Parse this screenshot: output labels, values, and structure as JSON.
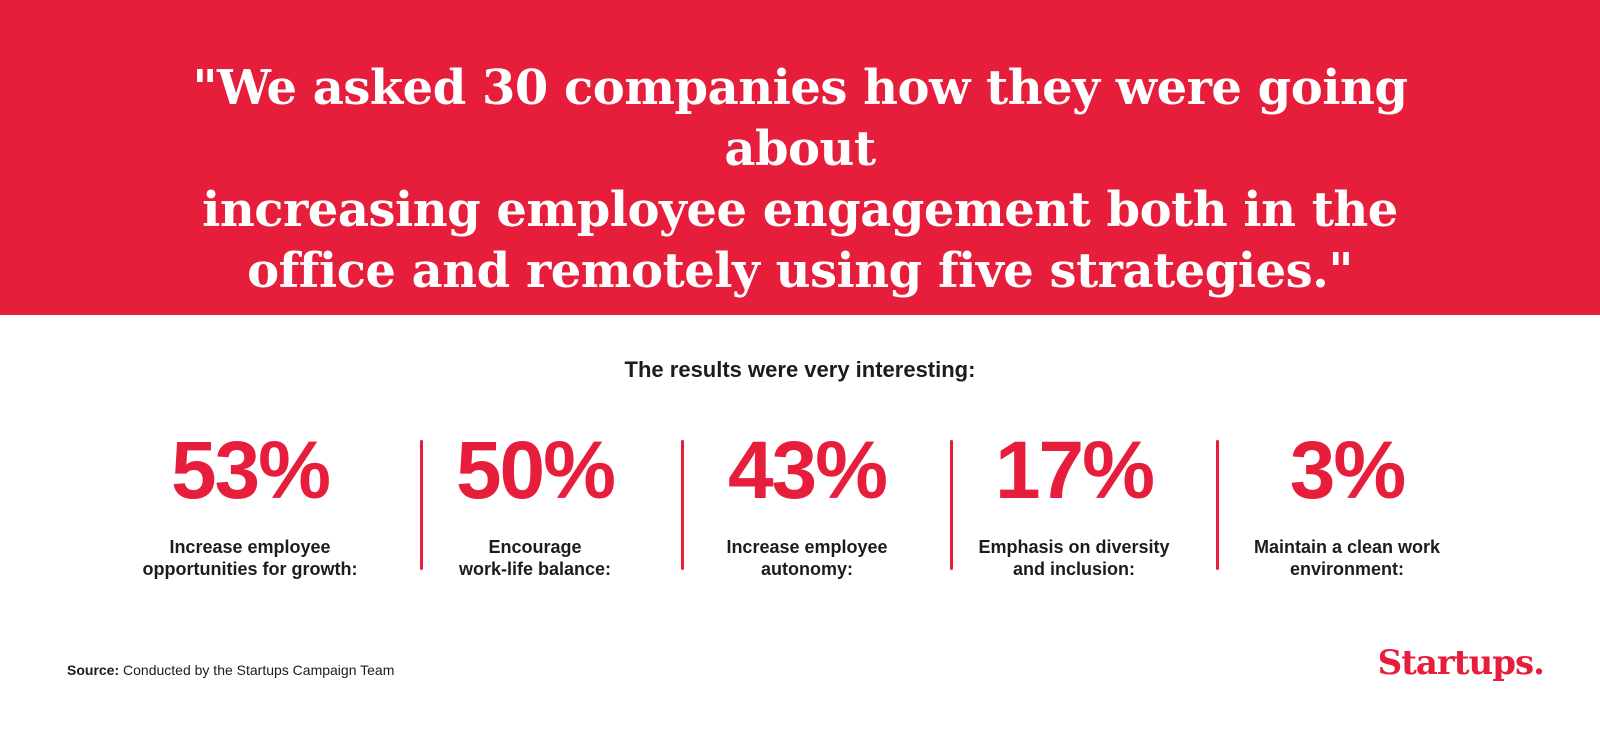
{
  "banner": {
    "quote_lines": [
      "\"We asked 30 companies how they were going about",
      "increasing employee engagement both in the",
      "office and remotely using five strategies.\""
    ],
    "background_color": "#e61e3c"
  },
  "results": {
    "heading": "The results were very interesting:",
    "accent_color": "#e61e3c",
    "items": [
      {
        "value": "53%",
        "label_lines": [
          "Increase employee",
          "opportunities for growth:"
        ]
      },
      {
        "value": "50%",
        "label_lines": [
          "Encourage",
          "work-life balance:"
        ]
      },
      {
        "value": "43%",
        "label_lines": [
          "Increase employee",
          "autonomy:"
        ]
      },
      {
        "value": "17%",
        "label_lines": [
          "Emphasis on diversity",
          "and inclusion:"
        ]
      },
      {
        "value": "3%",
        "label_lines": [
          "Maintain a clean work",
          "environment:"
        ]
      }
    ]
  },
  "footer": {
    "source_label": "Source:",
    "source_text": "Conducted by the Startups Campaign Team",
    "logo_text": "Startups."
  }
}
